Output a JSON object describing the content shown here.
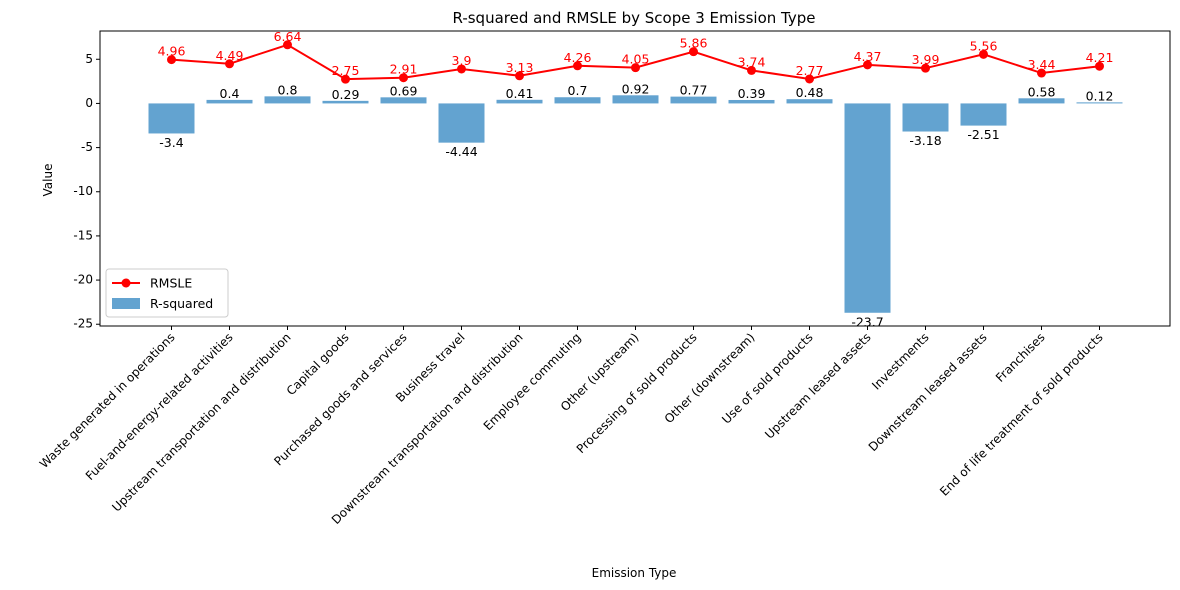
{
  "chart_data": {
    "type": "bar",
    "title": "R-squared and RMSLE by Scope 3 Emission Type",
    "xlabel": "Emission Type",
    "ylabel": "Value",
    "ylim": [
      -25.2,
      8.2
    ],
    "yticks": [
      5,
      0,
      -5,
      -10,
      -15,
      -20,
      -25
    ],
    "legend_position": "lower-left",
    "categories": [
      "Waste generated in operations",
      "Fuel-and-energy-related activities",
      "Upstream transportation and distribution",
      "Capital goods",
      "Purchased goods and services",
      "Business travel",
      "Downstream transportation and distribution",
      "Employee commuting",
      "Other (upstream)",
      "Processing of sold products",
      "Other (downstream)",
      "Use of sold products",
      "Upstream leased assets",
      "Investments",
      "Downstream leased assets",
      "Franchises",
      "End of life treatment of sold products"
    ],
    "series": [
      {
        "name": "R-squared",
        "kind": "bar",
        "color": "#5b9ecd",
        "values": [
          -3.4,
          0.4,
          0.8,
          0.29,
          0.69,
          -4.44,
          0.41,
          0.7,
          0.92,
          0.77,
          0.39,
          0.48,
          -23.7,
          -3.18,
          -2.51,
          0.58,
          0.12
        ],
        "labels": [
          "-3.4",
          "0.4",
          "0.8",
          "0.29",
          "0.69",
          "-4.44",
          "0.41",
          "0.7",
          "0.92",
          "0.77",
          "0.39",
          "0.48",
          "-23.7",
          "-3.18",
          "-2.51",
          "0.58",
          "0.12"
        ]
      },
      {
        "name": "RMSLE",
        "kind": "line",
        "color": "#ff0000",
        "values": [
          4.96,
          4.49,
          6.64,
          2.75,
          2.91,
          3.9,
          3.13,
          4.26,
          4.05,
          5.86,
          3.74,
          2.77,
          4.37,
          3.99,
          5.56,
          3.44,
          4.21
        ],
        "labels": [
          "4.96",
          "4.49",
          "6.64",
          "2.75",
          "2.91",
          "3.9",
          "3.13",
          "4.26",
          "4.05",
          "5.86",
          "3.74",
          "2.77",
          "4.37",
          "3.99",
          "5.56",
          "3.44",
          "4.21"
        ]
      }
    ]
  }
}
